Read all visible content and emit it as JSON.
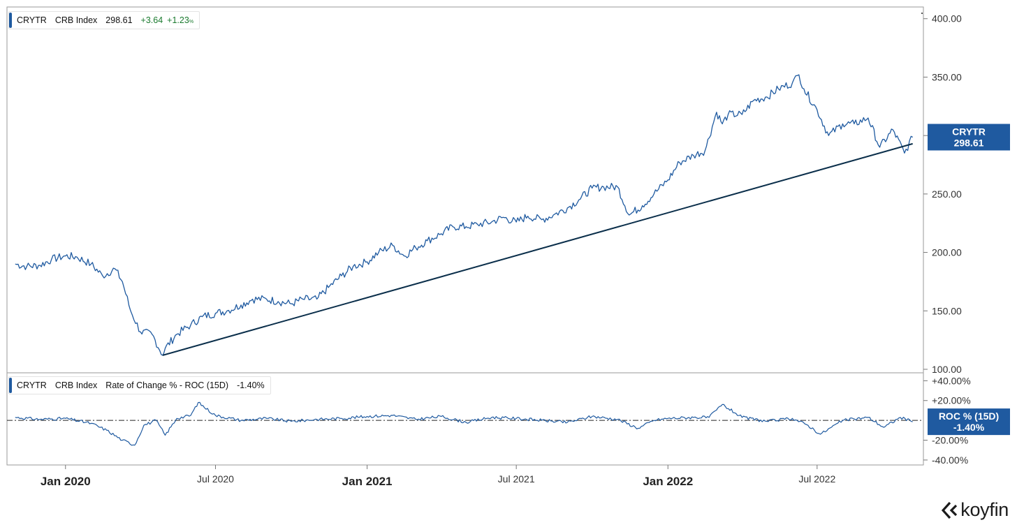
{
  "legend_top": {
    "ticker": "CRYTR",
    "name": "CRB Index",
    "value": "298.61",
    "change": "+3.64",
    "change_pct": "+1.23",
    "pct_sign": "%"
  },
  "legend_bottom": {
    "ticker": "CRYTR",
    "name": "CRB Index",
    "indicator": "Rate of Change % - ROC (15D)",
    "value": "-1.40%"
  },
  "price_tag": {
    "line1": "CRYTR",
    "line2": "298.61"
  },
  "roc_tag": {
    "line1": "ROC % (15D)",
    "line2": "-1.40%"
  },
  "logo_text": "koyfin",
  "colors": {
    "series": "#1f5aa0",
    "trendline": "#0a2e4a",
    "tag_bg": "#1f5aa0",
    "positive": "#1a7a2e"
  },
  "chart_data": [
    {
      "type": "line",
      "title": "",
      "series": [
        {
          "name": "CRYTR",
          "x": [
            "2019-11-01",
            "2019-11-15",
            "2019-12-01",
            "2019-12-15",
            "2020-01-01",
            "2020-01-15",
            "2020-02-01",
            "2020-02-15",
            "2020-03-01",
            "2020-03-10",
            "2020-03-20",
            "2020-04-01",
            "2020-04-15",
            "2020-04-28",
            "2020-05-01",
            "2020-05-15",
            "2020-06-01",
            "2020-06-15",
            "2020-07-01",
            "2020-07-15",
            "2020-08-01",
            "2020-08-15",
            "2020-09-01",
            "2020-09-15",
            "2020-10-01",
            "2020-10-15",
            "2020-11-01",
            "2020-11-15",
            "2020-12-01",
            "2020-12-15",
            "2021-01-01",
            "2021-01-15",
            "2021-02-01",
            "2021-02-15",
            "2021-03-01",
            "2021-03-15",
            "2021-04-01",
            "2021-04-15",
            "2021-05-01",
            "2021-05-15",
            "2021-06-01",
            "2021-06-15",
            "2021-07-01",
            "2021-07-15",
            "2021-08-01",
            "2021-08-15",
            "2021-09-01",
            "2021-09-15",
            "2021-10-01",
            "2021-10-15",
            "2021-11-01",
            "2021-11-15",
            "2021-12-01",
            "2021-12-15",
            "2022-01-01",
            "2022-01-15",
            "2022-02-01",
            "2022-02-15",
            "2022-03-01",
            "2022-03-08",
            "2022-03-15",
            "2022-04-01",
            "2022-04-15",
            "2022-05-01",
            "2022-05-15",
            "2022-06-01",
            "2022-06-09",
            "2022-06-15",
            "2022-07-01",
            "2022-07-15",
            "2022-08-01",
            "2022-08-15",
            "2022-09-01",
            "2022-09-15",
            "2022-10-01",
            "2022-10-15",
            "2022-10-25"
          ],
          "y": [
            190,
            188,
            189,
            194,
            197,
            196,
            190,
            180,
            186,
            175,
            150,
            132,
            130,
            112,
            118,
            130,
            138,
            145,
            148,
            150,
            155,
            160,
            160,
            158,
            156,
            160,
            160,
            170,
            180,
            188,
            192,
            200,
            206,
            197,
            204,
            210,
            216,
            222,
            222,
            224,
            226,
            230,
            226,
            231,
            228,
            232,
            238,
            245,
            255,
            256,
            256,
            232,
            240,
            250,
            262,
            277,
            283,
            287,
            320,
            310,
            318,
            318,
            330,
            333,
            340,
            345,
            352,
            340,
            322,
            300,
            310,
            310,
            315,
            290,
            305,
            285,
            298.61
          ]
        }
      ],
      "trendline": {
        "x": [
          "2020-04-28",
          "2022-10-25"
        ],
        "y": [
          112,
          293
        ]
      },
      "xlabel": "",
      "ylabel": "",
      "x_ticks": [
        {
          "date": "2020-01-01",
          "label": "Jan 2020",
          "major": true
        },
        {
          "date": "2020-07-01",
          "label": "Jul 2020",
          "major": false
        },
        {
          "date": "2021-01-01",
          "label": "Jan 2021",
          "major": true
        },
        {
          "date": "2021-07-01",
          "label": "Jul 2021",
          "major": false
        },
        {
          "date": "2022-01-01",
          "label": "Jan 2022",
          "major": true
        },
        {
          "date": "2022-07-01",
          "label": "Jul 2022",
          "major": false
        }
      ],
      "xlim": [
        "2019-10-22",
        "2022-11-07"
      ],
      "ylim": [
        97,
        410
      ],
      "y_ticks": [
        {
          "value": 100,
          "label": "100.00"
        },
        {
          "value": 150,
          "label": "150.00"
        },
        {
          "value": 200,
          "label": "200.00"
        },
        {
          "value": 250,
          "label": "250.00"
        },
        {
          "value": 300,
          "label": "300.00"
        },
        {
          "value": 350,
          "label": "350.00"
        },
        {
          "value": 400,
          "label": "400.00"
        }
      ],
      "grid": false,
      "last_value": 298.61
    },
    {
      "type": "line",
      "title": "",
      "series": [
        {
          "name": "ROC % (15D)",
          "x": [
            "2019-11-01",
            "2019-12-01",
            "2020-01-01",
            "2020-02-01",
            "2020-02-20",
            "2020-03-10",
            "2020-03-25",
            "2020-04-05",
            "2020-04-20",
            "2020-05-01",
            "2020-05-15",
            "2020-06-01",
            "2020-06-10",
            "2020-07-01",
            "2020-08-01",
            "2020-09-01",
            "2020-10-01",
            "2020-11-01",
            "2020-12-01",
            "2021-01-01",
            "2021-02-01",
            "2021-03-01",
            "2021-04-01",
            "2021-05-01",
            "2021-06-01",
            "2021-07-01",
            "2021-08-01",
            "2021-09-01",
            "2021-10-01",
            "2021-11-01",
            "2021-11-26",
            "2021-12-15",
            "2022-01-01",
            "2022-02-01",
            "2022-02-20",
            "2022-03-08",
            "2022-04-01",
            "2022-05-01",
            "2022-06-01",
            "2022-06-20",
            "2022-07-05",
            "2022-08-01",
            "2022-09-01",
            "2022-09-20",
            "2022-10-10",
            "2022-10-25"
          ],
          "y": [
            3,
            1,
            2,
            -3,
            -10,
            -20,
            -25,
            -5,
            0,
            -15,
            2,
            5,
            18,
            5,
            0,
            2,
            -1,
            1,
            2,
            4,
            5,
            1,
            4,
            -2,
            3,
            2,
            0,
            -2,
            4,
            1,
            -8,
            0,
            2,
            3,
            3,
            16,
            3,
            -1,
            2,
            -5,
            -14,
            0,
            3,
            -7,
            3,
            -1.4
          ]
        }
      ],
      "xlabel": "",
      "ylabel": "",
      "ylim": [
        -45,
        48
      ],
      "y_ticks": [
        {
          "value": 40,
          "label": "+40.00%"
        },
        {
          "value": 20,
          "label": "+20.00%"
        },
        {
          "value": -20,
          "label": "-20.00%"
        },
        {
          "value": -40,
          "label": "-40.00%"
        }
      ],
      "zero_line": "dash-dot",
      "grid": false,
      "last_value": -1.4
    }
  ]
}
